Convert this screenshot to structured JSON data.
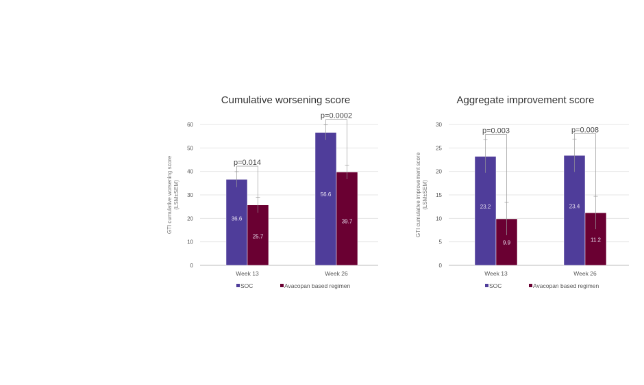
{
  "colors": {
    "soc": "#4f3d9a",
    "avacopan": "#6a0032",
    "grid": "#e4e4e4",
    "text": "#555555",
    "title": "#333333"
  },
  "chart_data": [
    {
      "type": "bar",
      "title": "Cumulative worsening score",
      "ylabel": "GTI cumulative worsening score (LSM±SEM)",
      "ylabel_lines": [
        "GTI cumulative worsening score",
        "(LSM±SEM)"
      ],
      "ylim": [
        0,
        60
      ],
      "yticks": [
        0,
        10,
        20,
        30,
        40,
        50,
        60
      ],
      "categories": [
        "Week 13",
        "Week 26"
      ],
      "series": [
        {
          "name": "SOC",
          "values": [
            36.6,
            56.6
          ],
          "sem": [
            3.3,
            3.2
          ],
          "labels": [
            "36.6",
            "56.6"
          ]
        },
        {
          "name": "Avacopan based regimen",
          "values": [
            25.7,
            39.7
          ],
          "sem": [
            3.3,
            3.0
          ],
          "labels": [
            "25.7",
            "39.7"
          ]
        }
      ],
      "pvalues": [
        "p=0.014",
        "p=0.0002"
      ],
      "legend": "bottom"
    },
    {
      "type": "bar",
      "title": "Aggregate improvement score",
      "ylabel": "GTI cumulative improvement score (LSM±SEM)",
      "ylabel_lines": [
        "GTI cumulative improvement score",
        "(LSM±SEM)"
      ],
      "ylim": [
        0,
        30
      ],
      "yticks": [
        0,
        5,
        10,
        15,
        20,
        25,
        30
      ],
      "categories": [
        "Week 13",
        "Week 26"
      ],
      "series": [
        {
          "name": "SOC",
          "values": [
            23.2,
            23.4
          ],
          "sem": [
            3.5,
            3.5
          ],
          "labels": [
            "23.2",
            "23.4"
          ]
        },
        {
          "name": "Avacopan based regimen",
          "values": [
            9.9,
            11.2
          ],
          "sem": [
            3.5,
            3.5
          ],
          "labels": [
            "9.9",
            "11.2"
          ]
        }
      ],
      "pvalues": [
        "p=0.003",
        "p=0.008"
      ],
      "legend": "bottom"
    }
  ]
}
